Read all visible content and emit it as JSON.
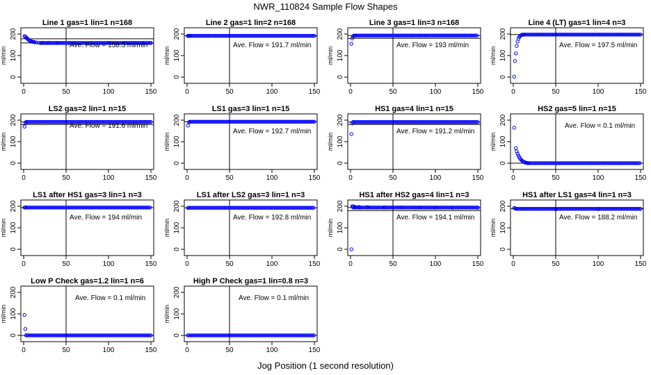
{
  "figure": {
    "title": "NWR_110824  Sample Flow Shapes",
    "xlabel": "Jog Position (1 second resolution)",
    "series_color": "#0000ff",
    "vline_at": 50,
    "ann_prefix": "Ave. Flow =",
    "ann_unit": "ml/min"
  },
  "chart_data": [
    {
      "type": "scatter",
      "title": "Line 1 gas=1 lin=1 n=168",
      "ylabel": "ml/min",
      "xlim": [
        0,
        150
      ],
      "ylim": [
        0,
        200
      ],
      "xticks": [
        0,
        50,
        100,
        150
      ],
      "yticks": [
        0,
        100,
        200
      ],
      "avg_flow": "158.5",
      "hlines": [
        158.5,
        178
      ],
      "points": [
        [
          1,
          190
        ],
        [
          2,
          188
        ],
        [
          3,
          184
        ],
        [
          4,
          180
        ],
        [
          5,
          176
        ],
        [
          6,
          172
        ],
        [
          7,
          170
        ],
        [
          8,
          168
        ],
        [
          9,
          166
        ],
        [
          10,
          165
        ],
        [
          11,
          164
        ],
        [
          12,
          163
        ],
        [
          13,
          162
        ],
        [
          15,
          161
        ],
        [
          18,
          160
        ],
        [
          22,
          159.5
        ],
        [
          30,
          159
        ],
        [
          40,
          158.5
        ],
        [
          60,
          158.5
        ],
        [
          80,
          158.5
        ],
        [
          100,
          158.5
        ],
        [
          120,
          158.5
        ],
        [
          140,
          158.5
        ],
        [
          150,
          158.5
        ]
      ],
      "fill": [
        20,
        150,
        158.5
      ]
    },
    {
      "type": "scatter",
      "title": "Line 2 gas=1 lin=2 n=168",
      "ylabel": "ml/min",
      "xlim": [
        0,
        150
      ],
      "ylim": [
        0,
        200
      ],
      "xticks": [
        0,
        50,
        100,
        150
      ],
      "yticks": [
        0,
        100,
        200
      ],
      "avg_flow": "191.7",
      "hlines": [
        191.7
      ],
      "points": [
        [
          1,
          191
        ],
        [
          2,
          192
        ],
        [
          3,
          191.5
        ],
        [
          150,
          191.7
        ]
      ],
      "fill": [
        1,
        150,
        191.7
      ]
    },
    {
      "type": "scatter",
      "title": "Line 3 gas=1 lin=3 n=168",
      "ylabel": "ml/min",
      "xlim": [
        0,
        150
      ],
      "ylim": [
        0,
        200
      ],
      "xticks": [
        0,
        50,
        100,
        150
      ],
      "yticks": [
        0,
        100,
        200
      ],
      "avg_flow": "193",
      "hlines": [
        193,
        180
      ],
      "points": [
        [
          1,
          155
        ],
        [
          2,
          180
        ],
        [
          3,
          190
        ],
        [
          4,
          192
        ],
        [
          5,
          193
        ]
      ],
      "fill": [
        5,
        150,
        193
      ]
    },
    {
      "type": "scatter",
      "title": "Line 4 (LT) gas=1 lin=4 n=3",
      "ylabel": "ml/min",
      "xlim": [
        0,
        150
      ],
      "ylim": [
        0,
        200
      ],
      "xticks": [
        0,
        50,
        100,
        150
      ],
      "yticks": [
        0,
        100,
        200
      ],
      "avg_flow": "197.5",
      "hlines": [
        197.5
      ],
      "points": [
        [
          1,
          2
        ],
        [
          2,
          75
        ],
        [
          3,
          110
        ],
        [
          4,
          145
        ],
        [
          5,
          165
        ],
        [
          6,
          178
        ],
        [
          7,
          186
        ],
        [
          8,
          191
        ],
        [
          9,
          194
        ],
        [
          10,
          196
        ],
        [
          11,
          197
        ],
        [
          12,
          197.5
        ]
      ],
      "fill": [
        12,
        150,
        197.5
      ]
    },
    {
      "type": "scatter",
      "title": "LS2 gas=2 lin=1 n=15",
      "ylabel": "ml/min",
      "xlim": [
        0,
        150
      ],
      "ylim": [
        0,
        200
      ],
      "xticks": [
        0,
        50,
        100,
        150
      ],
      "yticks": [
        0,
        100,
        200
      ],
      "avg_flow": "191.6",
      "hlines": [
        191.6,
        180
      ],
      "points": [
        [
          1,
          170
        ],
        [
          2,
          188
        ],
        [
          3,
          191
        ]
      ],
      "fill": [
        3,
        150,
        191.6
      ]
    },
    {
      "type": "scatter",
      "title": "LS1 gas=3 lin=1 n=15",
      "ylabel": "ml/min",
      "xlim": [
        0,
        150
      ],
      "ylim": [
        0,
        200
      ],
      "xticks": [
        0,
        50,
        100,
        150
      ],
      "yticks": [
        0,
        100,
        200
      ],
      "avg_flow": "192.7",
      "hlines": [
        192.7
      ],
      "points": [
        [
          1,
          175
        ],
        [
          2,
          190
        ],
        [
          3,
          192
        ]
      ],
      "fill": [
        3,
        150,
        192.7
      ]
    },
    {
      "type": "scatter",
      "title": "HS1 gas=4 lin=1 n=15",
      "ylabel": "ml/min",
      "xlim": [
        0,
        150
      ],
      "ylim": [
        0,
        200
      ],
      "xticks": [
        0,
        50,
        100,
        150
      ],
      "yticks": [
        0,
        100,
        200
      ],
      "avg_flow": "191.2",
      "hlines": [
        191.2,
        180
      ],
      "points": [
        [
          1,
          135
        ],
        [
          2,
          185
        ],
        [
          3,
          190
        ]
      ],
      "fill": [
        3,
        150,
        191.2
      ]
    },
    {
      "type": "scatter",
      "title": "HS2 gas=5 lin=1 n=15",
      "ylabel": "ml/min",
      "xlim": [
        0,
        150
      ],
      "ylim": [
        0,
        200
      ],
      "xticks": [
        0,
        50,
        100,
        150
      ],
      "yticks": [
        0,
        100,
        200
      ],
      "avg_flow": "0.1",
      "hlines": [
        0.1
      ],
      "points": [
        [
          1,
          165
        ],
        [
          3,
          70
        ],
        [
          4,
          55
        ],
        [
          5,
          45
        ],
        [
          6,
          35
        ],
        [
          7,
          28
        ],
        [
          8,
          22
        ],
        [
          9,
          17
        ],
        [
          10,
          13
        ],
        [
          11,
          10
        ],
        [
          12,
          7
        ],
        [
          13,
          5
        ],
        [
          14,
          3
        ],
        [
          15,
          2
        ],
        [
          16,
          1
        ],
        [
          17,
          0.5
        ]
      ],
      "fill": [
        17,
        150,
        0.1
      ]
    },
    {
      "type": "scatter",
      "title": "LS1 after HS1 gas=3 lin=1 n=3",
      "ylabel": "ml/min",
      "xlim": [
        0,
        150
      ],
      "ylim": [
        0,
        200
      ],
      "xticks": [
        0,
        50,
        100,
        150
      ],
      "yticks": [
        0,
        100,
        200
      ],
      "avg_flow": "194",
      "hlines": [
        194
      ],
      "points": [
        [
          1,
          194
        ],
        [
          2,
          195
        ]
      ],
      "fill": [
        2,
        150,
        194
      ]
    },
    {
      "type": "scatter",
      "title": "LS1 after LS2 gas=3 lin=1 n=3",
      "ylabel": "ml/min",
      "xlim": [
        0,
        150
      ],
      "ylim": [
        0,
        200
      ],
      "xticks": [
        0,
        50,
        100,
        150
      ],
      "yticks": [
        0,
        100,
        200
      ],
      "avg_flow": "192.8",
      "hlines": [
        192.8
      ],
      "points": [
        [
          1,
          192
        ],
        [
          2,
          193
        ]
      ],
      "fill": [
        2,
        150,
        192.8
      ]
    },
    {
      "type": "scatter",
      "title": "HS1 after HS2 gas=4 lin=1 n=3",
      "ylabel": "ml/min",
      "xlim": [
        0,
        150
      ],
      "ylim": [
        0,
        200
      ],
      "xticks": [
        0,
        50,
        100,
        150
      ],
      "yticks": [
        0,
        100,
        200
      ],
      "avg_flow": "194.1",
      "hlines": [
        194.1,
        180
      ],
      "points": [
        [
          1,
          0
        ],
        [
          2,
          200
        ],
        [
          3,
          199
        ],
        [
          5,
          198
        ],
        [
          10,
          197
        ],
        [
          20,
          196
        ],
        [
          40,
          195
        ],
        [
          60,
          194.5
        ],
        [
          80,
          194
        ],
        [
          100,
          193.5
        ],
        [
          120,
          193
        ],
        [
          150,
          192.5
        ]
      ],
      "fill": [
        3,
        150,
        194.1
      ]
    },
    {
      "type": "scatter",
      "title": "HS1 after LS1 gas=4 lin=1 n=3",
      "ylabel": "ml/min",
      "xlim": [
        0,
        150
      ],
      "ylim": [
        0,
        200
      ],
      "xticks": [
        0,
        50,
        100,
        150
      ],
      "yticks": [
        0,
        100,
        200
      ],
      "avg_flow": "188.2",
      "hlines": [
        188.2
      ],
      "points": [
        [
          1,
          192
        ],
        [
          2,
          191
        ],
        [
          3,
          189
        ],
        [
          50,
          186
        ],
        [
          100,
          187
        ],
        [
          150,
          188
        ]
      ],
      "fill": [
        3,
        150,
        188.2
      ]
    },
    {
      "type": "scatter",
      "title": "Low P Check gas=1.2 lin=1 n=6",
      "ylabel": "ml/min",
      "xlim": [
        0,
        150
      ],
      "ylim": [
        0,
        200
      ],
      "xticks": [
        0,
        50,
        100,
        150
      ],
      "yticks": [
        0,
        100,
        200
      ],
      "avg_flow": "0.1",
      "hlines": [
        0.1
      ],
      "points": [
        [
          1,
          95
        ],
        [
          2,
          30
        ],
        [
          3,
          1
        ]
      ],
      "fill": [
        3,
        150,
        0.1
      ]
    },
    {
      "type": "scatter",
      "title": "High P Check gas=1 lin=0.8 n=3",
      "ylabel": "ml/min",
      "xlim": [
        0,
        150
      ],
      "ylim": [
        0,
        200
      ],
      "xticks": [
        0,
        50,
        100,
        150
      ],
      "yticks": [
        0,
        100,
        200
      ],
      "avg_flow": "0.1",
      "hlines": [
        0.1
      ],
      "points": [
        [
          1,
          0.1
        ]
      ],
      "fill": [
        1,
        150,
        0.1
      ]
    }
  ]
}
